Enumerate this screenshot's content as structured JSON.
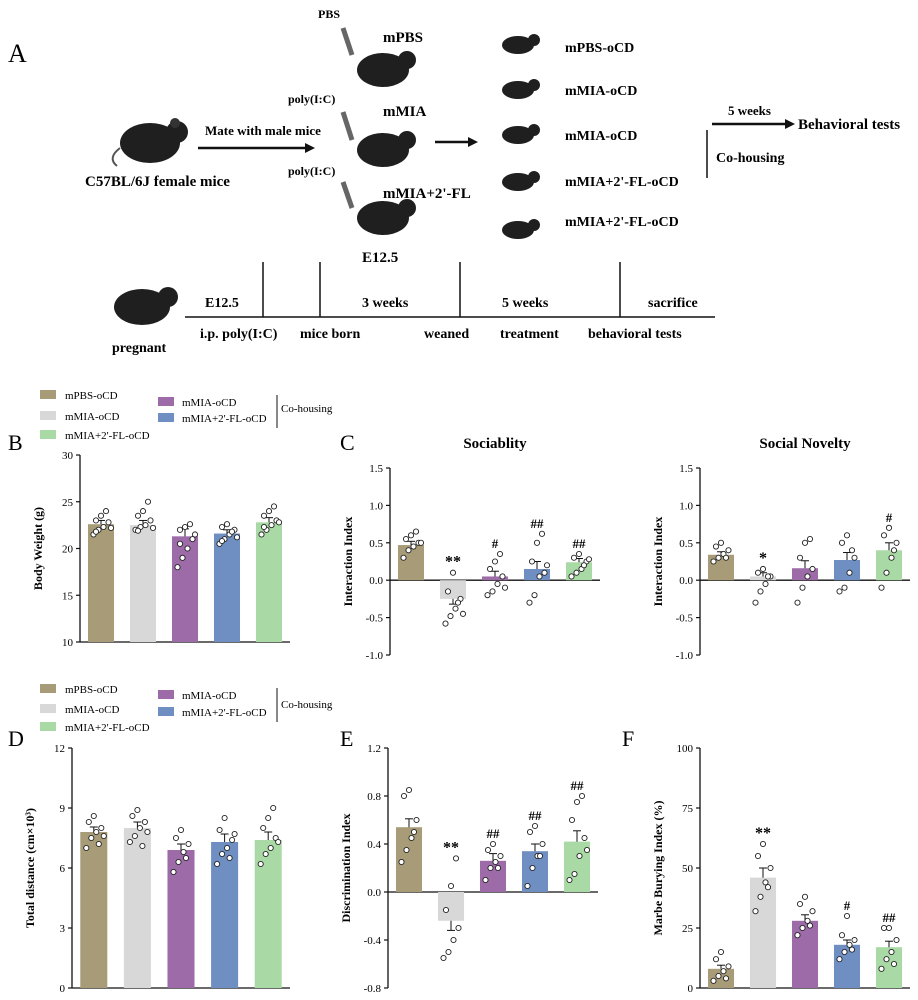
{
  "colors": {
    "mPBS-oCD": "#a79c77",
    "mMIA-oCD": "#d8d8d8",
    "mMIA-oCD-co": "#9c6ba8",
    "mMIA+2'-FL-oCD-co": "#6f8fc2",
    "mMIA+2'-FL-oCD": "#a9d9a4"
  },
  "panelA": {
    "label": "A",
    "female": "C57BL/6J female mice",
    "mate": "Mate with male mice",
    "pbs": "PBS",
    "polyic1": "poly(I:C)",
    "polyic2": "poly(I:C)",
    "mpbs": "mPBS",
    "mmia": "mMIA",
    "mmia2fl": "mMIA+2'-FL",
    "e125": "E12.5",
    "groups": [
      "mPBS-oCD",
      "mMIA-oCD",
      "mMIA-oCD",
      "mMIA+2'-FL-oCD",
      "mMIA+2'-FL-oCD"
    ],
    "weeks5": "5 weeks",
    "behavioral": "Behavioral tests",
    "cohousing": "Co-housing",
    "timeline": {
      "pregnant": "pregnant",
      "top": [
        "E12.5",
        "3 weeks",
        "5 weeks",
        "sacrifice"
      ],
      "bottom": [
        "i.p. poly(I:C)",
        "mice born",
        "weaned",
        "treatment",
        "behavioral tests"
      ]
    }
  },
  "legend": {
    "left": [
      "mPBS-oCD",
      "mMIA-oCD",
      "mMIA+2'-FL-oCD"
    ],
    "right": [
      "mMIA-oCD",
      "mMIA+2'-FL-oCD"
    ],
    "cohousing": "Co-housing"
  },
  "chart_data": [
    {
      "panel": "B",
      "type": "bar",
      "categories": [
        "mPBS-oCD",
        "mMIA-oCD",
        "mMIA-oCD",
        "mMIA+2'-FL-oCD",
        "mMIA+2'-FL-oCD"
      ],
      "values": [
        22.6,
        22.5,
        21.3,
        21.6,
        22.8
      ],
      "errors": [
        0.4,
        0.5,
        0.8,
        0.4,
        0.5
      ],
      "points": [
        [
          21.5,
          22,
          22.3,
          22.8,
          23,
          23.5,
          24,
          22.2,
          21.8
        ],
        [
          22,
          22.3,
          22.5,
          23,
          23.5,
          24,
          25,
          22.2,
          21.9
        ],
        [
          18,
          19,
          20,
          21,
          22,
          22.3,
          22.6,
          21.5,
          20.5
        ],
        [
          20.5,
          21,
          21.5,
          22,
          22.3,
          22.6,
          21.8,
          21.2,
          20.8
        ],
        [
          21.5,
          22,
          22.5,
          23,
          23.5,
          24,
          24.5,
          22.8,
          22.3
        ]
      ],
      "marks": [
        "",
        "",
        "",
        "",
        ""
      ],
      "title": "",
      "xlabel": "",
      "ylabel": "Body  Weight (g)",
      "ylim": [
        10,
        30
      ],
      "yticks": [
        "10",
        "15",
        "20",
        "25",
        "30"
      ]
    },
    {
      "panel": "C",
      "type": "bar",
      "categories": [
        "mPBS-oCD",
        "mMIA-oCD",
        "mMIA-oCD",
        "mMIA+2'-FL-oCD",
        "mMIA+2'-FL-oCD"
      ],
      "values": [
        0.47,
        -0.25,
        0.05,
        0.15,
        0.24
      ],
      "errors": [
        0.05,
        0.07,
        0.07,
        0.1,
        0.05
      ],
      "points": [
        [
          0.3,
          0.4,
          0.45,
          0.5,
          0.55,
          0.6,
          0.65,
          0.5
        ],
        [
          -0.58,
          -0.48,
          -0.38,
          -0.25,
          -0.15,
          0.1,
          -0.3,
          -0.45
        ],
        [
          -0.2,
          -0.15,
          -0.05,
          0.05,
          0.15,
          0.25,
          0.35,
          -0.1
        ],
        [
          -0.3,
          -0.2,
          0.05,
          0.1,
          0.25,
          0.5,
          0.62,
          0.2
        ],
        [
          0.05,
          0.1,
          0.15,
          0.25,
          0.3,
          0.35,
          0.2,
          0.28
        ]
      ],
      "marks": [
        "",
        "**",
        "#",
        "##",
        "##"
      ],
      "title": "Sociablity",
      "xlabel": "",
      "ylabel": "Interaction Index",
      "ylim": [
        -1.0,
        1.5
      ],
      "yticks": [
        "-1.0",
        "-0.5",
        "0.0",
        "0.5",
        "1.0",
        "1.5"
      ]
    },
    {
      "panel": "C",
      "type": "bar",
      "categories": [
        "mPBS-oCD",
        "mMIA-oCD",
        "mMIA-oCD",
        "mMIA+2'-FL-oCD",
        "mMIA+2'-FL-oCD"
      ],
      "values": [
        0.34,
        0.05,
        0.16,
        0.27,
        0.4
      ],
      "errors": [
        0.04,
        0.05,
        0.1,
        0.1,
        0.1
      ],
      "points": [
        [
          0.25,
          0.3,
          0.35,
          0.4,
          0.45,
          0.5,
          0.3
        ],
        [
          -0.3,
          -0.15,
          -0.05,
          0.05,
          0.1,
          0.15,
          0.05
        ],
        [
          -0.3,
          -0.1,
          0.05,
          0.15,
          0.3,
          0.5,
          0.55
        ],
        [
          -0.15,
          -0.1,
          0.1,
          0.3,
          0.5,
          0.6,
          0.4
        ],
        [
          -0.1,
          0.1,
          0.3,
          0.5,
          0.6,
          0.7,
          0.4
        ]
      ],
      "marks": [
        "",
        "*",
        "",
        "",
        "#"
      ],
      "title": "Social Novelty",
      "xlabel": "",
      "ylabel": "Interaction Index",
      "ylim": [
        -1.0,
        1.5
      ],
      "yticks": [
        "-1.0",
        "-0.5",
        "0.0",
        "0.5",
        "1.0",
        "1.5"
      ]
    },
    {
      "panel": "D",
      "type": "bar",
      "categories": [
        "mPBS-oCD",
        "mMIA-oCD",
        "mMIA-oCD",
        "mMIA+2'-FL-oCD",
        "mMIA+2'-FL-oCD"
      ],
      "values": [
        7.8,
        8.0,
        6.9,
        7.3,
        7.4
      ],
      "errors": [
        0.25,
        0.3,
        0.3,
        0.4,
        0.4
      ],
      "points": [
        [
          7,
          7.5,
          7.8,
          8,
          8.3,
          8.6,
          7.2,
          7.6
        ],
        [
          7.3,
          7.6,
          8,
          8.3,
          8.6,
          8.9,
          7.1,
          7.8
        ],
        [
          5.8,
          6.3,
          6.8,
          7.2,
          7.5,
          7.9,
          6.5
        ],
        [
          6.2,
          6.7,
          7,
          7.4,
          7.9,
          8.5,
          6.5,
          7.7
        ],
        [
          6.2,
          6.7,
          7,
          7.5,
          8,
          8.5,
          9,
          7.3
        ]
      ],
      "marks": [
        "",
        "",
        "",
        "",
        ""
      ],
      "title": "",
      "xlabel": "",
      "ylabel": "Total distance (cm×10³)",
      "ylim": [
        0,
        12
      ],
      "yticks": [
        "0",
        "3",
        "6",
        "9",
        "12"
      ]
    },
    {
      "panel": "E",
      "type": "bar",
      "categories": [
        "mPBS-oCD",
        "mMIA-oCD",
        "mMIA-oCD",
        "mMIA+2'-FL-oCD",
        "mMIA+2'-FL-oCD"
      ],
      "values": [
        0.54,
        -0.24,
        0.26,
        0.34,
        0.42
      ],
      "errors": [
        0.07,
        0.08,
        0.06,
        0.06,
        0.09
      ],
      "points": [
        [
          0.25,
          0.35,
          0.45,
          0.6,
          0.8,
          0.85,
          0.5
        ],
        [
          -0.55,
          -0.5,
          -0.4,
          -0.3,
          -0.15,
          0.05,
          0.28
        ],
        [
          0.1,
          0.2,
          0.25,
          0.3,
          0.35,
          0.4,
          0.2
        ],
        [
          0.05,
          0.2,
          0.3,
          0.4,
          0.5,
          0.55,
          0.3
        ],
        [
          0.1,
          0.15,
          0.3,
          0.45,
          0.6,
          0.75,
          0.8,
          0.35
        ]
      ],
      "marks": [
        "",
        "**",
        "##",
        "##",
        "##"
      ],
      "title": "",
      "xlabel": "",
      "ylabel": "Discrimination Index",
      "ylim": [
        -0.8,
        1.2
      ],
      "yticks": [
        "-0.8",
        "-0.4",
        "0.0",
        "0.4",
        "0.8",
        "1.2"
      ]
    },
    {
      "panel": "F",
      "type": "bar",
      "categories": [
        "mPBS-oCD",
        "mMIA-oCD",
        "mMIA-oCD",
        "mMIA+2'-FL-oCD",
        "mMIA+2'-FL-oCD"
      ],
      "values": [
        8,
        46,
        28,
        18,
        17
      ],
      "errors": [
        1.5,
        4,
        2.5,
        2,
        2.5
      ],
      "points": [
        [
          3,
          5,
          7,
          9,
          12,
          15,
          4
        ],
        [
          32,
          38,
          44,
          50,
          55,
          60,
          42
        ],
        [
          22,
          25,
          28,
          32,
          35,
          38,
          26
        ],
        [
          12,
          15,
          18,
          20,
          22,
          30,
          16
        ],
        [
          8,
          12,
          15,
          20,
          25,
          25,
          10
        ]
      ],
      "marks": [
        "",
        "**",
        "",
        "#",
        "##"
      ],
      "title": "",
      "xlabel": "",
      "ylabel": "Marbe Burying Index (%)",
      "ylim": [
        0,
        100
      ],
      "yticks": [
        "0",
        "25",
        "50",
        "75",
        "100"
      ]
    }
  ],
  "panel_labels": [
    "B",
    "C",
    "D",
    "E",
    "F"
  ]
}
